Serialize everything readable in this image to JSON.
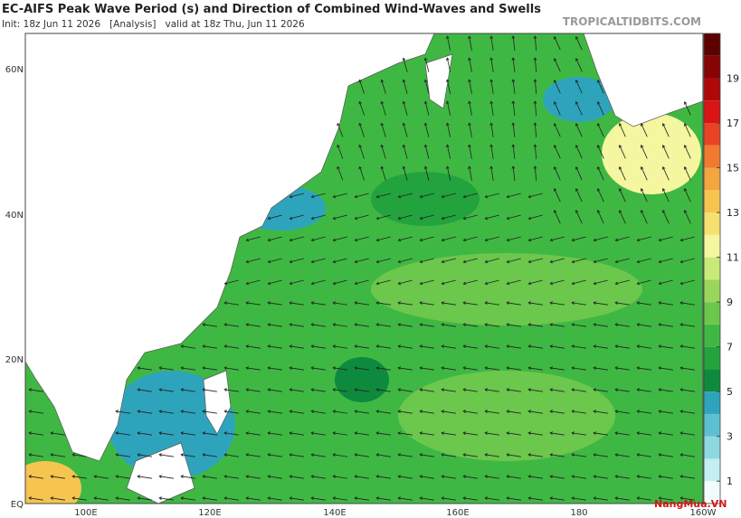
{
  "header": {
    "title": "EC-AIFS Peak Wave Period (s) and Direction of Combined Wind-Waves and Swells",
    "subtitle": "Init: 18z Jun 11 2026   [Analysis]   valid at 18z Thu, Jun 11 2026",
    "site": "TROPICALTIDBITS.COM"
  },
  "map": {
    "lat_labels": [
      "60N",
      "40N",
      "20N",
      "EQ"
    ],
    "lon_labels": [
      "100E",
      "120E",
      "140E",
      "160E",
      "180",
      "160W"
    ]
  },
  "colorbar": {
    "lim": [
      0,
      21
    ],
    "ticks": [
      1,
      3,
      5,
      7,
      9,
      11,
      13,
      15,
      17,
      19
    ],
    "colors": [
      "#f2fcfc",
      "#c4eef2",
      "#8ed8e2",
      "#5cc0d0",
      "#2ea4bc",
      "#0e8a3e",
      "#22a33e",
      "#3fb843",
      "#6cc74d",
      "#9ad65c",
      "#c8ea78",
      "#f4f6a0",
      "#f6e070",
      "#f5c550",
      "#f3a540",
      "#ef7a30",
      "#e84424",
      "#d81414",
      "#b00808",
      "#860404",
      "#5c0000"
    ]
  },
  "watermark": "NangMua.VN"
}
